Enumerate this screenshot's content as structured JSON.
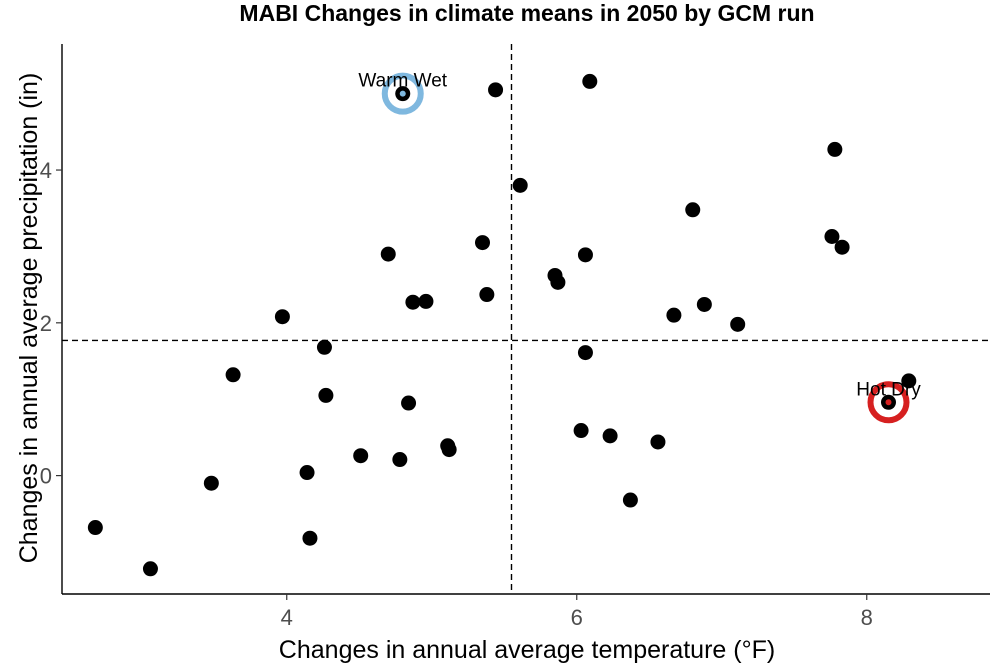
{
  "chart_data": {
    "type": "scatter",
    "title": "MABI Changes in climate means in 2050 by GCM run",
    "xlabel": "Changes in annual average temperature (°F)",
    "ylabel": "Changes in annual average precipitation (in)",
    "xlim": [
      2.45,
      8.85
    ],
    "ylim": [
      -1.55,
      5.65
    ],
    "xticks": [
      4,
      6,
      8
    ],
    "yticks": [
      0,
      2,
      4
    ],
    "grid": false,
    "point_color": "#000000",
    "reference_lines": {
      "x": 5.55,
      "y": 1.77
    },
    "points": [
      {
        "x": 2.68,
        "y": -0.68
      },
      {
        "x": 3.06,
        "y": -1.22
      },
      {
        "x": 3.48,
        "y": -0.1
      },
      {
        "x": 3.63,
        "y": 1.32
      },
      {
        "x": 3.97,
        "y": 2.08
      },
      {
        "x": 4.14,
        "y": 0.04
      },
      {
        "x": 4.16,
        "y": -0.82
      },
      {
        "x": 4.26,
        "y": 1.68
      },
      {
        "x": 4.27,
        "y": 1.05
      },
      {
        "x": 4.51,
        "y": 0.26
      },
      {
        "x": 4.7,
        "y": 2.9
      },
      {
        "x": 4.78,
        "y": 0.21
      },
      {
        "x": 4.8,
        "y": 5.0
      },
      {
        "x": 4.84,
        "y": 0.95
      },
      {
        "x": 4.87,
        "y": 2.27
      },
      {
        "x": 4.96,
        "y": 2.28
      },
      {
        "x": 5.11,
        "y": 0.39
      },
      {
        "x": 5.12,
        "y": 0.34
      },
      {
        "x": 5.35,
        "y": 3.05
      },
      {
        "x": 5.38,
        "y": 2.37
      },
      {
        "x": 5.44,
        "y": 5.05
      },
      {
        "x": 5.61,
        "y": 3.8
      },
      {
        "x": 5.85,
        "y": 2.62
      },
      {
        "x": 5.87,
        "y": 2.53
      },
      {
        "x": 6.03,
        "y": 0.59
      },
      {
        "x": 6.06,
        "y": 2.89
      },
      {
        "x": 6.06,
        "y": 1.61
      },
      {
        "x": 6.09,
        "y": 5.16
      },
      {
        "x": 6.23,
        "y": 0.52
      },
      {
        "x": 6.37,
        "y": -0.32
      },
      {
        "x": 6.56,
        "y": 0.44
      },
      {
        "x": 6.67,
        "y": 2.1
      },
      {
        "x": 6.8,
        "y": 3.48
      },
      {
        "x": 6.88,
        "y": 2.24
      },
      {
        "x": 7.11,
        "y": 1.98
      },
      {
        "x": 7.76,
        "y": 3.13
      },
      {
        "x": 7.78,
        "y": 4.27
      },
      {
        "x": 7.83,
        "y": 2.99
      },
      {
        "x": 8.15,
        "y": 0.96
      },
      {
        "x": 8.29,
        "y": 1.24
      }
    ],
    "highlights": [
      {
        "label": "Warm Wet",
        "x": 4.8,
        "y": 5.0,
        "ring_color": "#7fb8df"
      },
      {
        "label": "Hot Dry",
        "x": 8.15,
        "y": 0.96,
        "ring_color": "#d62020"
      }
    ]
  }
}
